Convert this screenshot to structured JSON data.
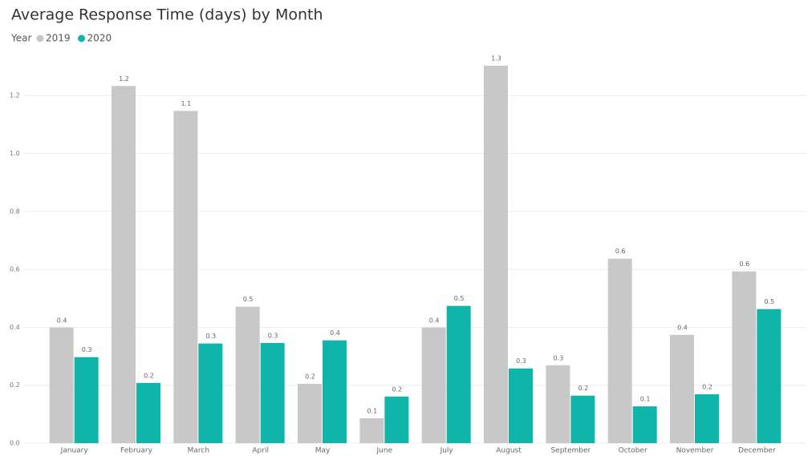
{
  "chart_data": {
    "type": "bar",
    "title": "Average Response Time (days) by Month",
    "legend_title": "Year",
    "categories": [
      "January",
      "February",
      "March",
      "April",
      "May",
      "June",
      "July",
      "August",
      "September",
      "October",
      "November",
      "December"
    ],
    "series": [
      {
        "name": "2019",
        "color": "#c8c8c8",
        "values": [
          0.399,
          1.233,
          1.147,
          0.471,
          0.205,
          0.086,
          0.399,
          1.303,
          0.269,
          0.637,
          0.374,
          0.593
        ],
        "value_labels": [
          "0.4",
          "1.2",
          "1.1",
          "0.5",
          "0.2",
          "0.1",
          "0.4",
          "1.3",
          "0.3",
          "0.6",
          "0.4",
          "0.6"
        ]
      },
      {
        "name": "2020",
        "color": "#0fb5a8",
        "values": [
          0.297,
          0.208,
          0.344,
          0.346,
          0.355,
          0.161,
          0.474,
          0.258,
          0.164,
          0.127,
          0.169,
          0.463
        ],
        "value_labels": [
          "0.3",
          "0.2",
          "0.3",
          "0.3",
          "0.4",
          "0.2",
          "0.5",
          "0.3",
          "0.2",
          "0.1",
          "0.2",
          "0.5"
        ]
      }
    ],
    "ylim": [
      0,
      1.35
    ],
    "yticks": [
      {
        "value": 0,
        "label": "0.0"
      },
      0.2,
      0.4,
      0.6,
      0.8,
      {
        "value": 1,
        "label": "1.0"
      },
      1.2
    ],
    "grid": true
  }
}
